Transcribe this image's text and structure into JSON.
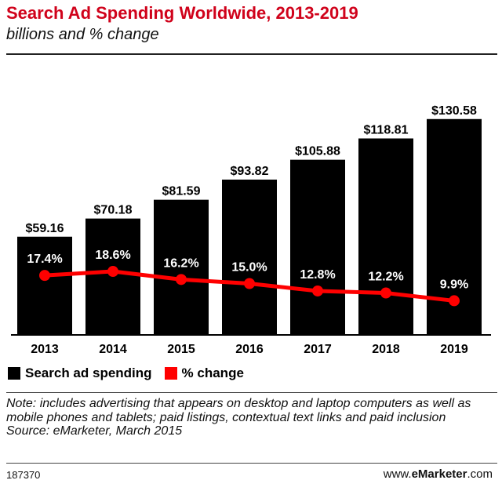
{
  "header": {
    "title": "Search Ad Spending Worldwide, 2013-2019",
    "subtitle": "billions and % change"
  },
  "legend": {
    "items": [
      {
        "label": "Search ad spending",
        "color": "#000000"
      },
      {
        "label": "% change",
        "color": "#ff0000"
      }
    ]
  },
  "note": {
    "text": "Note: includes advertising that appears on desktop and laptop computers as well as mobile phones and tablets; paid listings, contextual text links and paid inclusion",
    "source": "Source: eMarketer, March 2015"
  },
  "footer": {
    "id": "187370",
    "brand_prefix": "www.",
    "brand_name": "eMarketer",
    "brand_suffix": ".com"
  },
  "chart_data": {
    "type": "bar",
    "categories": [
      "2013",
      "2014",
      "2015",
      "2016",
      "2017",
      "2018",
      "2019"
    ],
    "series": [
      {
        "name": "Search ad spending",
        "values": [
          59.16,
          70.18,
          81.59,
          93.82,
          105.88,
          118.81,
          130.58
        ],
        "labels": [
          "$59.16",
          "$70.18",
          "$81.59",
          "$93.82",
          "$105.88",
          "$118.81",
          "$130.58"
        ],
        "color": "#000000"
      },
      {
        "name": "% change",
        "type": "line",
        "values": [
          17.4,
          18.6,
          16.2,
          15.0,
          12.8,
          12.2,
          9.9
        ],
        "labels": [
          "17.4%",
          "18.6%",
          "16.2%",
          "15.0%",
          "12.8%",
          "12.2%",
          "9.9%"
        ],
        "color": "#ff0000"
      }
    ],
    "title": "Search Ad Spending Worldwide, 2013-2019",
    "subtitle": "billions and % change",
    "xlabel": "",
    "ylabel": "",
    "grid": false,
    "legend_position": "bottom-left"
  }
}
